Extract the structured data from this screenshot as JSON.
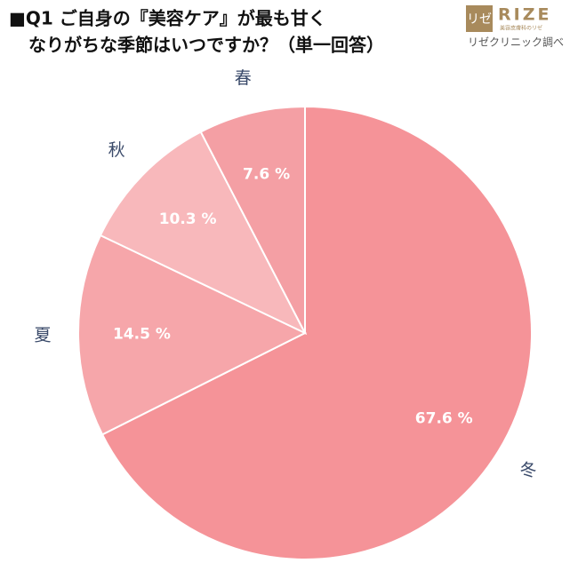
{
  "chart_data": {
    "type": "pie",
    "title": [
      "■Q1 ご自身の『美容ケア』が最も甘く",
      "なりがちな季節はいつですか？（単一回答）"
    ],
    "categories": [
      "冬",
      "夏",
      "秋",
      "春"
    ],
    "values": [
      67.6,
      14.5,
      10.3,
      7.6
    ],
    "value_labels": [
      "67.6 %",
      "14.5 %",
      "10.3 %",
      "7.6 %"
    ],
    "colors": [
      "#f59398",
      "#f6a6aa",
      "#f8b8bb",
      "#f49fa4"
    ]
  },
  "logo": {
    "mark": "リゼ",
    "brand": "RIZE",
    "tagline": "美容皮膚科のリゼ",
    "source": "リゼクリニック調べ"
  }
}
